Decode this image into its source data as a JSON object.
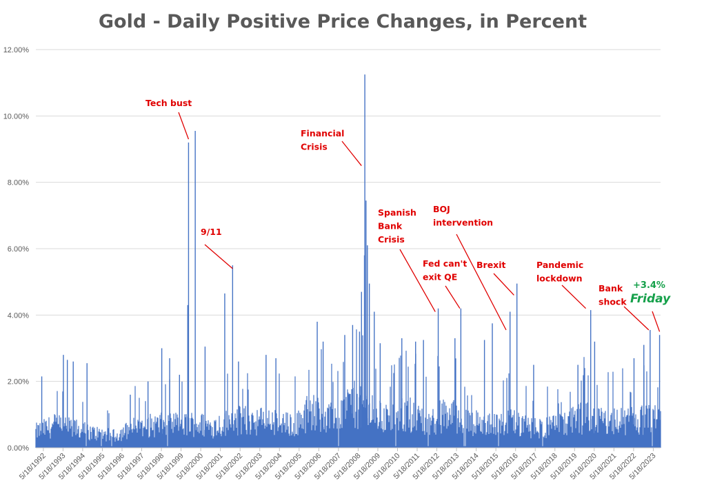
{
  "chart_data": {
    "type": "bar",
    "title": "Gold - Daily Positive Price Changes, in Percent",
    "xlabel": "",
    "ylabel": "",
    "ylim": [
      0,
      12
    ],
    "grid": true,
    "legend": "none",
    "bar_color": "#4472c4",
    "annotation_color": "#e00000",
    "highlight_color": "#15a04a",
    "x_tick_labels": [
      "5/18/1992",
      "5/18/1993",
      "5/18/1994",
      "5/18/1995",
      "5/18/1996",
      "5/18/1997",
      "5/18/1998",
      "5/18/1999",
      "5/18/2000",
      "5/18/2001",
      "5/18/2002",
      "5/18/2003",
      "5/18/2004",
      "5/18/2005",
      "5/18/2006",
      "5/18/2007",
      "5/18/2008",
      "5/18/2009",
      "5/18/2010",
      "5/18/2011",
      "5/18/2012",
      "5/18/2013",
      "5/18/2014",
      "5/18/2015",
      "5/18/2016",
      "5/18/2017",
      "5/18/2018",
      "5/18/2019",
      "5/18/2020",
      "5/18/2021",
      "5/18/2022",
      "5/18/2023"
    ],
    "y_tick_labels": [
      "0.00%",
      "2.00%",
      "4.00%",
      "6.00%",
      "8.00%",
      "10.00%",
      "12.00%"
    ],
    "y_tick_values": [
      0,
      2,
      4,
      6,
      8,
      10,
      12
    ],
    "x_range": [
      1992.0,
      2023.75
    ],
    "typical_level_by_year": [
      [
        1992,
        0.6
      ],
      [
        1993,
        0.85
      ],
      [
        1994,
        0.7
      ],
      [
        1995,
        0.55
      ],
      [
        1996,
        0.45
      ],
      [
        1997,
        0.75
      ],
      [
        1998,
        0.85
      ],
      [
        1999,
        0.85
      ],
      [
        2000,
        0.9
      ],
      [
        2001,
        0.8
      ],
      [
        2002,
        1.0
      ],
      [
        2003,
        1.05
      ],
      [
        2004,
        0.95
      ],
      [
        2005,
        0.85
      ],
      [
        2006,
        1.4
      ],
      [
        2007,
        1.1
      ],
      [
        2008,
        1.7
      ],
      [
        2009,
        1.3
      ],
      [
        2010,
        1.1
      ],
      [
        2011,
        1.3
      ],
      [
        2012,
        1.0
      ],
      [
        2013,
        1.3
      ],
      [
        2014,
        0.95
      ],
      [
        2015,
        0.9
      ],
      [
        2016,
        1.0
      ],
      [
        2017,
        0.75
      ],
      [
        2018,
        0.75
      ],
      [
        2019,
        0.9
      ],
      [
        2020,
        1.2
      ],
      [
        2021,
        0.95
      ],
      [
        2022,
        1.0
      ],
      [
        2023,
        1.05
      ]
    ],
    "spikes": [
      {
        "x": 1992.3,
        "y": 2.15
      },
      {
        "x": 1993.4,
        "y": 2.8
      },
      {
        "x": 1993.6,
        "y": 2.65
      },
      {
        "x": 1993.9,
        "y": 2.6
      },
      {
        "x": 1994.6,
        "y": 2.55
      },
      {
        "x": 1996.8,
        "y": 1.6
      },
      {
        "x": 1997.7,
        "y": 2.0
      },
      {
        "x": 1998.4,
        "y": 3.0
      },
      {
        "x": 1998.8,
        "y": 2.7
      },
      {
        "x": 1999.3,
        "y": 2.2
      },
      {
        "x": 1999.72,
        "y": 4.3
      },
      {
        "x": 1999.76,
        "y": 9.2
      },
      {
        "x": 2000.1,
        "y": 9.55
      },
      {
        "x": 2000.6,
        "y": 3.05
      },
      {
        "x": 2001.6,
        "y": 4.65
      },
      {
        "x": 2002.0,
        "y": 5.5
      },
      {
        "x": 2002.3,
        "y": 2.6
      },
      {
        "x": 2003.7,
        "y": 2.8
      },
      {
        "x": 2004.2,
        "y": 2.7
      },
      {
        "x": 2006.3,
        "y": 3.8
      },
      {
        "x": 2006.6,
        "y": 3.2
      },
      {
        "x": 2007.7,
        "y": 3.4
      },
      {
        "x": 2008.1,
        "y": 3.7
      },
      {
        "x": 2008.45,
        "y": 3.5
      },
      {
        "x": 2008.55,
        "y": 4.7
      },
      {
        "x": 2008.7,
        "y": 5.8
      },
      {
        "x": 2008.72,
        "y": 11.25
      },
      {
        "x": 2008.78,
        "y": 7.45
      },
      {
        "x": 2008.85,
        "y": 6.1
      },
      {
        "x": 2008.95,
        "y": 4.95
      },
      {
        "x": 2009.2,
        "y": 4.1
      },
      {
        "x": 2009.5,
        "y": 3.15
      },
      {
        "x": 2010.6,
        "y": 3.3
      },
      {
        "x": 2011.3,
        "y": 3.2
      },
      {
        "x": 2011.7,
        "y": 3.25
      },
      {
        "x": 2012.45,
        "y": 4.2
      },
      {
        "x": 2013.3,
        "y": 3.3
      },
      {
        "x": 2013.6,
        "y": 4.2
      },
      {
        "x": 2014.8,
        "y": 3.25
      },
      {
        "x": 2015.2,
        "y": 3.75
      },
      {
        "x": 2016.1,
        "y": 4.1
      },
      {
        "x": 2016.45,
        "y": 4.95
      },
      {
        "x": 2017.3,
        "y": 2.5
      },
      {
        "x": 2019.55,
        "y": 2.5
      },
      {
        "x": 2020.2,
        "y": 4.15
      },
      {
        "x": 2020.4,
        "y": 3.2
      },
      {
        "x": 2022.4,
        "y": 2.7
      },
      {
        "x": 2022.9,
        "y": 3.1
      },
      {
        "x": 2023.22,
        "y": 3.55
      },
      {
        "x": 2023.7,
        "y": 3.4
      }
    ],
    "annotations": [
      {
        "id": "tech-bust",
        "lines": [
          "Tech bust"
        ],
        "style": "red",
        "pointer_to": {
          "x": 1999.76,
          "y": 9.3
        }
      },
      {
        "id": "nine-eleven",
        "lines": [
          "9/11"
        ],
        "style": "red",
        "pointer_to": {
          "x": 2002.0,
          "y": 5.4
        }
      },
      {
        "id": "financial-crisis",
        "lines": [
          "Financial",
          "Crisis"
        ],
        "style": "red",
        "pointer_to": {
          "x": 2008.55,
          "y": 8.5
        }
      },
      {
        "id": "spanish-bank-crisis",
        "lines": [
          "Spanish",
          "Bank",
          "Crisis"
        ],
        "style": "red",
        "pointer_to": {
          "x": 2012.3,
          "y": 4.1
        }
      },
      {
        "id": "boj-intervention",
        "lines": [
          "BOJ",
          "intervention"
        ],
        "style": "red",
        "pointer_to": {
          "x": 2015.9,
          "y": 3.55
        }
      },
      {
        "id": "fed-cant-exit-qe",
        "lines": [
          "Fed can't",
          "exit QE"
        ],
        "style": "red",
        "pointer_to": {
          "x": 2013.55,
          "y": 4.2
        }
      },
      {
        "id": "brexit",
        "lines": [
          "Brexit"
        ],
        "style": "red",
        "pointer_to": {
          "x": 2016.3,
          "y": 4.6
        }
      },
      {
        "id": "pandemic-lockdown",
        "lines": [
          "Pandemic",
          "lockdown"
        ],
        "style": "red",
        "pointer_to": {
          "x": 2019.95,
          "y": 4.2
        }
      },
      {
        "id": "bank-shock",
        "lines": [
          "Bank",
          "shock"
        ],
        "style": "red",
        "pointer_to": {
          "x": 2023.15,
          "y": 3.55
        }
      },
      {
        "id": "friday-change",
        "lines": [
          "+3.4%"
        ],
        "style": "green",
        "pointer_to": {
          "x": 2023.7,
          "y": 3.5
        }
      },
      {
        "id": "friday-label",
        "lines": [
          "Friday"
        ],
        "style": "green-big",
        "pointer_to": null
      }
    ]
  }
}
